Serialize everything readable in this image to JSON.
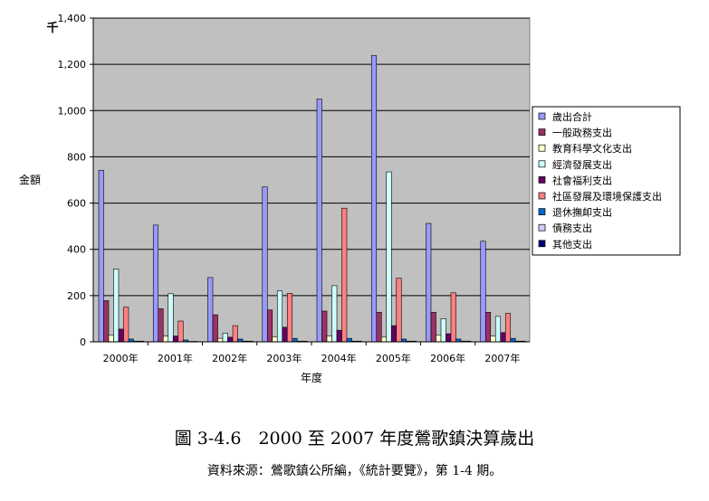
{
  "chart_data": {
    "type": "bar",
    "ylabel": "金額",
    "yunit": "千",
    "xlabel": "年度",
    "ylim": [
      0,
      1400
    ],
    "yticks": [
      "0",
      "200",
      "400",
      "600",
      "800",
      "1,000",
      "1,200",
      "1,400"
    ],
    "grid": true,
    "legend_position": "right",
    "categories": [
      "2000年",
      "2001年",
      "2002年",
      "2003年",
      "2004年",
      "2005年",
      "2006年",
      "2007年"
    ],
    "series": [
      {
        "name": "歲出合計",
        "color": "#9999ff",
        "values": [
          742,
          505,
          278,
          670,
          1050,
          1238,
          512,
          435
        ]
      },
      {
        "name": "一般政務支出",
        "color": "#993366",
        "values": [
          178,
          143,
          117,
          138,
          133,
          128,
          128,
          128
        ]
      },
      {
        "name": "教育科學文化支出",
        "color": "#ffffcc",
        "values": [
          30,
          25,
          15,
          22,
          25,
          20,
          30,
          25
        ]
      },
      {
        "name": "經濟發展支出",
        "color": "#ccffff",
        "values": [
          315,
          208,
          38,
          220,
          243,
          735,
          100,
          110
        ]
      },
      {
        "name": "社會福利支出",
        "color": "#660066",
        "values": [
          55,
          25,
          20,
          63,
          50,
          70,
          35,
          40
        ]
      },
      {
        "name": "社區發展及環境保護支出",
        "color": "#ff8080",
        "values": [
          150,
          90,
          70,
          210,
          578,
          275,
          212,
          123
        ]
      },
      {
        "name": "退休撫卹支出",
        "color": "#0066cc",
        "values": [
          12,
          8,
          12,
          15,
          15,
          12,
          12,
          15
        ]
      },
      {
        "name": "債務支出",
        "color": "#ccccff",
        "values": [
          3,
          2,
          3,
          3,
          3,
          3,
          3,
          3
        ]
      },
      {
        "name": "其他支出",
        "color": "#000080",
        "values": [
          3,
          2,
          3,
          3,
          3,
          3,
          3,
          3
        ]
      }
    ]
  },
  "caption": {
    "title": "圖 3-4.6　2000 至 2007 年度鶯歌鎮決算歲出",
    "source": "資料來源：鶯歌鎮公所編，《統計要覽》，第 1-4 期。"
  }
}
